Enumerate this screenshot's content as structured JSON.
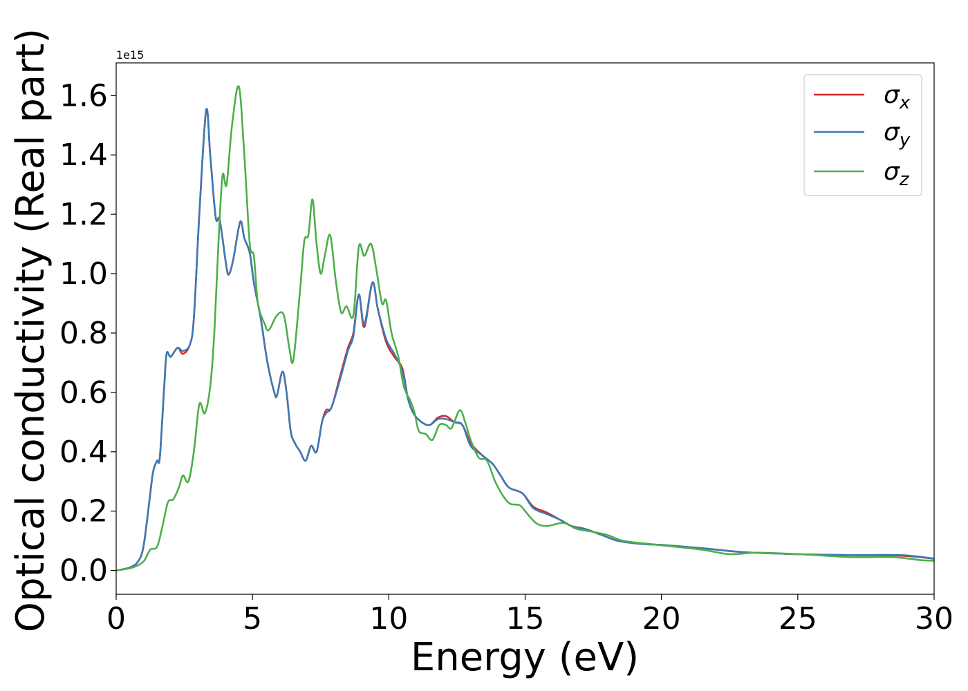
{
  "chart_data": {
    "type": "line",
    "xlabel": "Energy (eV)",
    "ylabel": "Optical conductivity (Real part)",
    "offset_text": "1e15",
    "xlim": [
      0,
      30
    ],
    "ylim": [
      -0.08,
      1.71
    ],
    "x_ticks": [
      0,
      5,
      10,
      15,
      20,
      25,
      30
    ],
    "y_ticks": [
      0.0,
      0.2,
      0.4,
      0.6,
      0.8,
      1.0,
      1.2,
      1.4,
      1.6
    ],
    "x_tick_labels": [
      "0",
      "5",
      "10",
      "15",
      "20",
      "25",
      "30"
    ],
    "y_tick_labels": [
      "0.0",
      "0.2",
      "0.4",
      "0.6",
      "0.8",
      "1.0",
      "1.2",
      "1.4",
      "1.6"
    ],
    "grid": false,
    "legend_placement": "top-right",
    "series": [
      {
        "name": "σx",
        "legend_base": "σ",
        "legend_sub": "x",
        "color": "#d62728",
        "points": [
          [
            0,
            0
          ],
          [
            0.5,
            0.01
          ],
          [
            0.8,
            0.03
          ],
          [
            1.0,
            0.08
          ],
          [
            1.2,
            0.22
          ],
          [
            1.35,
            0.33
          ],
          [
            1.5,
            0.37
          ],
          [
            1.6,
            0.38
          ],
          [
            1.75,
            0.6
          ],
          [
            1.85,
            0.73
          ],
          [
            2.0,
            0.72
          ],
          [
            2.25,
            0.75
          ],
          [
            2.45,
            0.73
          ],
          [
            2.7,
            0.76
          ],
          [
            2.85,
            0.85
          ],
          [
            3.05,
            1.2
          ],
          [
            3.3,
            1.55
          ],
          [
            3.45,
            1.4
          ],
          [
            3.65,
            1.19
          ],
          [
            3.8,
            1.18
          ],
          [
            4.05,
            1.02
          ],
          [
            4.15,
            1.0
          ],
          [
            4.3,
            1.05
          ],
          [
            4.55,
            1.175
          ],
          [
            4.7,
            1.12
          ],
          [
            4.9,
            1.07
          ],
          [
            5.05,
            0.97
          ],
          [
            5.3,
            0.85
          ],
          [
            5.55,
            0.7
          ],
          [
            5.8,
            0.6
          ],
          [
            5.9,
            0.59
          ],
          [
            6.1,
            0.67
          ],
          [
            6.25,
            0.6
          ],
          [
            6.4,
            0.47
          ],
          [
            6.55,
            0.43
          ],
          [
            6.75,
            0.4
          ],
          [
            6.95,
            0.37
          ],
          [
            7.15,
            0.42
          ],
          [
            7.35,
            0.4
          ],
          [
            7.55,
            0.5
          ],
          [
            7.7,
            0.54
          ],
          [
            7.9,
            0.55
          ],
          [
            8.2,
            0.65
          ],
          [
            8.5,
            0.75
          ],
          [
            8.7,
            0.8
          ],
          [
            8.9,
            0.93
          ],
          [
            9.1,
            0.82
          ],
          [
            9.4,
            0.97
          ],
          [
            9.6,
            0.88
          ],
          [
            9.9,
            0.77
          ],
          [
            10.2,
            0.72
          ],
          [
            10.5,
            0.68
          ],
          [
            10.7,
            0.58
          ],
          [
            10.9,
            0.53
          ],
          [
            11.2,
            0.5
          ],
          [
            11.5,
            0.49
          ],
          [
            11.8,
            0.515
          ],
          [
            12.1,
            0.52
          ],
          [
            12.4,
            0.5
          ],
          [
            12.7,
            0.49
          ],
          [
            13.0,
            0.43
          ],
          [
            13.4,
            0.39
          ],
          [
            13.8,
            0.36
          ],
          [
            14.1,
            0.32
          ],
          [
            14.4,
            0.28
          ],
          [
            14.9,
            0.26
          ],
          [
            15.3,
            0.215
          ],
          [
            15.8,
            0.195
          ],
          [
            16.3,
            0.17
          ],
          [
            16.7,
            0.15
          ],
          [
            17.2,
            0.14
          ],
          [
            17.8,
            0.12
          ],
          [
            18.4,
            0.1
          ],
          [
            19.2,
            0.09
          ],
          [
            20.2,
            0.085
          ],
          [
            21.5,
            0.075
          ],
          [
            23.0,
            0.062
          ],
          [
            25.0,
            0.055
          ],
          [
            27.0,
            0.052
          ],
          [
            28.8,
            0.05
          ],
          [
            30.0,
            0.04
          ]
        ]
      },
      {
        "name": "σy",
        "legend_base": "σ",
        "legend_sub": "y",
        "color": "#3d7ab5",
        "points": [
          [
            0,
            0
          ],
          [
            0.5,
            0.01
          ],
          [
            0.8,
            0.03
          ],
          [
            1.0,
            0.08
          ],
          [
            1.2,
            0.22
          ],
          [
            1.35,
            0.33
          ],
          [
            1.5,
            0.37
          ],
          [
            1.6,
            0.38
          ],
          [
            1.75,
            0.6
          ],
          [
            1.85,
            0.73
          ],
          [
            2.0,
            0.72
          ],
          [
            2.25,
            0.75
          ],
          [
            2.45,
            0.74
          ],
          [
            2.7,
            0.76
          ],
          [
            2.85,
            0.85
          ],
          [
            3.05,
            1.2
          ],
          [
            3.3,
            1.55
          ],
          [
            3.45,
            1.4
          ],
          [
            3.65,
            1.19
          ],
          [
            3.8,
            1.18
          ],
          [
            4.05,
            1.02
          ],
          [
            4.15,
            1.0
          ],
          [
            4.3,
            1.05
          ],
          [
            4.55,
            1.175
          ],
          [
            4.7,
            1.12
          ],
          [
            4.9,
            1.07
          ],
          [
            5.05,
            0.97
          ],
          [
            5.3,
            0.85
          ],
          [
            5.55,
            0.7
          ],
          [
            5.8,
            0.6
          ],
          [
            5.9,
            0.59
          ],
          [
            6.1,
            0.67
          ],
          [
            6.25,
            0.6
          ],
          [
            6.4,
            0.47
          ],
          [
            6.55,
            0.43
          ],
          [
            6.75,
            0.4
          ],
          [
            6.95,
            0.37
          ],
          [
            7.15,
            0.42
          ],
          [
            7.35,
            0.4
          ],
          [
            7.55,
            0.5
          ],
          [
            7.7,
            0.53
          ],
          [
            7.9,
            0.55
          ],
          [
            8.2,
            0.64
          ],
          [
            8.5,
            0.74
          ],
          [
            8.7,
            0.79
          ],
          [
            8.9,
            0.93
          ],
          [
            9.1,
            0.83
          ],
          [
            9.4,
            0.97
          ],
          [
            9.6,
            0.88
          ],
          [
            9.9,
            0.78
          ],
          [
            10.2,
            0.73
          ],
          [
            10.5,
            0.67
          ],
          [
            10.7,
            0.58
          ],
          [
            10.9,
            0.53
          ],
          [
            11.2,
            0.5
          ],
          [
            11.5,
            0.49
          ],
          [
            11.8,
            0.51
          ],
          [
            12.1,
            0.51
          ],
          [
            12.4,
            0.5
          ],
          [
            12.7,
            0.49
          ],
          [
            13.0,
            0.42
          ],
          [
            13.4,
            0.39
          ],
          [
            13.8,
            0.36
          ],
          [
            14.1,
            0.32
          ],
          [
            14.4,
            0.28
          ],
          [
            14.9,
            0.26
          ],
          [
            15.3,
            0.21
          ],
          [
            15.8,
            0.19
          ],
          [
            16.3,
            0.17
          ],
          [
            16.7,
            0.15
          ],
          [
            17.2,
            0.14
          ],
          [
            17.8,
            0.12
          ],
          [
            18.4,
            0.1
          ],
          [
            19.2,
            0.09
          ],
          [
            20.2,
            0.085
          ],
          [
            21.5,
            0.075
          ],
          [
            23.0,
            0.062
          ],
          [
            25.0,
            0.055
          ],
          [
            27.0,
            0.052
          ],
          [
            28.8,
            0.052
          ],
          [
            30.0,
            0.04
          ]
        ]
      },
      {
        "name": "σz",
        "legend_base": "σ",
        "legend_sub": "z",
        "color": "#4daf4a",
        "points": [
          [
            0,
            0
          ],
          [
            0.6,
            0.01
          ],
          [
            1.0,
            0.03
          ],
          [
            1.25,
            0.07
          ],
          [
            1.5,
            0.08
          ],
          [
            1.7,
            0.15
          ],
          [
            1.9,
            0.23
          ],
          [
            2.1,
            0.24
          ],
          [
            2.3,
            0.28
          ],
          [
            2.45,
            0.32
          ],
          [
            2.65,
            0.3
          ],
          [
            2.85,
            0.4
          ],
          [
            3.05,
            0.56
          ],
          [
            3.25,
            0.53
          ],
          [
            3.45,
            0.62
          ],
          [
            3.6,
            0.8
          ],
          [
            3.75,
            1.1
          ],
          [
            3.9,
            1.33
          ],
          [
            4.05,
            1.3
          ],
          [
            4.25,
            1.5
          ],
          [
            4.5,
            1.63
          ],
          [
            4.7,
            1.4
          ],
          [
            4.9,
            1.1
          ],
          [
            5.05,
            1.06
          ],
          [
            5.2,
            0.9
          ],
          [
            5.45,
            0.83
          ],
          [
            5.6,
            0.81
          ],
          [
            5.9,
            0.86
          ],
          [
            6.15,
            0.86
          ],
          [
            6.35,
            0.75
          ],
          [
            6.5,
            0.71
          ],
          [
            6.75,
            0.95
          ],
          [
            6.9,
            1.11
          ],
          [
            7.05,
            1.13
          ],
          [
            7.2,
            1.25
          ],
          [
            7.35,
            1.1
          ],
          [
            7.5,
            1.0
          ],
          [
            7.65,
            1.06
          ],
          [
            7.85,
            1.13
          ],
          [
            8.05,
            0.98
          ],
          [
            8.25,
            0.87
          ],
          [
            8.45,
            0.89
          ],
          [
            8.7,
            0.86
          ],
          [
            8.9,
            1.09
          ],
          [
            9.1,
            1.06
          ],
          [
            9.35,
            1.1
          ],
          [
            9.55,
            1.01
          ],
          [
            9.75,
            0.9
          ],
          [
            9.9,
            0.91
          ],
          [
            10.1,
            0.8
          ],
          [
            10.35,
            0.72
          ],
          [
            10.55,
            0.62
          ],
          [
            10.8,
            0.57
          ],
          [
            10.95,
            0.53
          ],
          [
            11.1,
            0.47
          ],
          [
            11.35,
            0.46
          ],
          [
            11.6,
            0.44
          ],
          [
            11.85,
            0.49
          ],
          [
            12.1,
            0.49
          ],
          [
            12.3,
            0.48
          ],
          [
            12.6,
            0.54
          ],
          [
            12.8,
            0.5
          ],
          [
            13.0,
            0.44
          ],
          [
            13.3,
            0.38
          ],
          [
            13.6,
            0.37
          ],
          [
            13.9,
            0.3
          ],
          [
            14.2,
            0.25
          ],
          [
            14.45,
            0.225
          ],
          [
            14.8,
            0.22
          ],
          [
            15.0,
            0.2
          ],
          [
            15.4,
            0.16
          ],
          [
            15.8,
            0.15
          ],
          [
            16.4,
            0.16
          ],
          [
            16.9,
            0.14
          ],
          [
            17.5,
            0.13
          ],
          [
            18.0,
            0.12
          ],
          [
            18.6,
            0.1
          ],
          [
            19.5,
            0.09
          ],
          [
            20.5,
            0.08
          ],
          [
            21.5,
            0.07
          ],
          [
            22.5,
            0.055
          ],
          [
            23.5,
            0.06
          ],
          [
            25.0,
            0.055
          ],
          [
            26.0,
            0.05
          ],
          [
            27.0,
            0.045
          ],
          [
            28.5,
            0.045
          ],
          [
            29.5,
            0.035
          ],
          [
            30.0,
            0.033
          ]
        ]
      }
    ]
  }
}
